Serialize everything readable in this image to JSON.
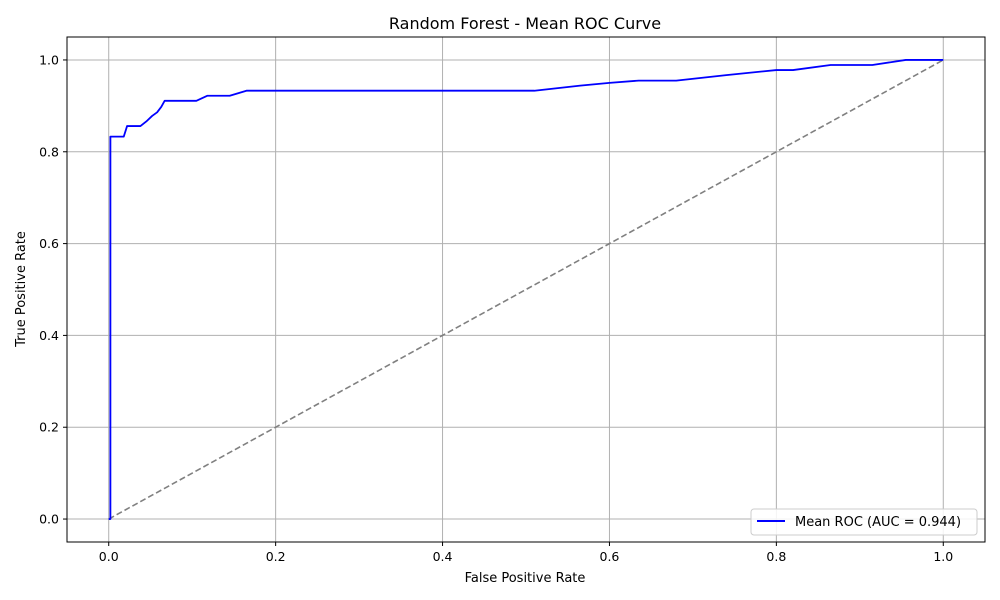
{
  "chart_data": {
    "type": "line",
    "title": "Random Forest - Mean ROC Curve",
    "xlabel": "False Positive Rate",
    "ylabel": "True Positive Rate",
    "xlim": [
      -0.05,
      1.05
    ],
    "ylim": [
      -0.05,
      1.05
    ],
    "xticks": [
      0.0,
      0.2,
      0.4,
      0.6,
      0.8,
      1.0
    ],
    "yticks": [
      0.0,
      0.2,
      0.4,
      0.6,
      0.8,
      1.0
    ],
    "xtick_labels": [
      "0.0",
      "0.2",
      "0.4",
      "0.6",
      "0.8",
      "1.0"
    ],
    "ytick_labels": [
      "0.0",
      "0.2",
      "0.4",
      "0.6",
      "0.8",
      "1.0"
    ],
    "grid": true,
    "legend_position": "lower-right",
    "series": [
      {
        "name": "Mean ROC (AUC = 0.944)",
        "color": "#0000ff",
        "style": "solid",
        "x": [
          0.0,
          0.002,
          0.002,
          0.018,
          0.022,
          0.038,
          0.045,
          0.052,
          0.058,
          0.063,
          0.067,
          0.105,
          0.118,
          0.145,
          0.165,
          0.2,
          0.3,
          0.4,
          0.51,
          0.565,
          0.6,
          0.635,
          0.68,
          0.74,
          0.8,
          0.82,
          0.865,
          0.915,
          0.955,
          1.0
        ],
        "y": [
          0.0,
          0.0,
          0.833,
          0.833,
          0.856,
          0.856,
          0.866,
          0.878,
          0.886,
          0.898,
          0.911,
          0.911,
          0.922,
          0.922,
          0.933,
          0.933,
          0.933,
          0.933,
          0.933,
          0.944,
          0.95,
          0.955,
          0.955,
          0.967,
          0.978,
          0.978,
          0.989,
          0.989,
          1.0,
          1.0
        ]
      },
      {
        "name": "",
        "color": "#808080",
        "style": "dashed",
        "x": [
          0.0,
          1.0
        ],
        "y": [
          0.0,
          1.0
        ]
      }
    ]
  }
}
